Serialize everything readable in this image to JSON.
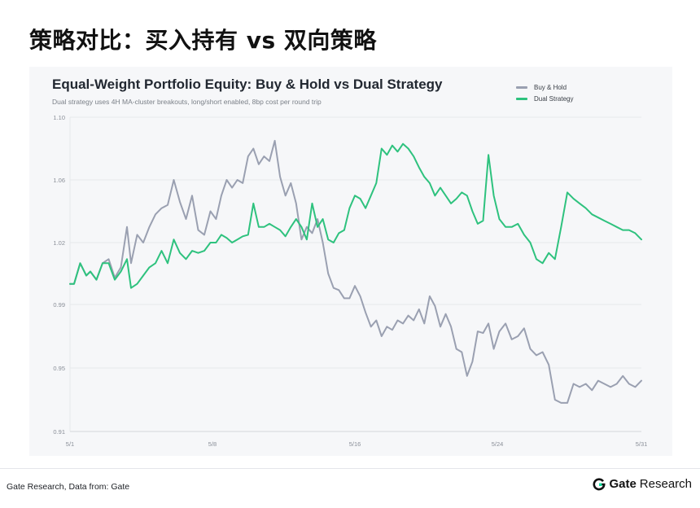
{
  "page": {
    "title": "策略对比：买入持有 vs 双向策略",
    "source": "Gate Research, Data from: Gate",
    "logo": {
      "icon": "gate-logo-icon",
      "brand": "Gate",
      "suffix": "Research"
    }
  },
  "colors": {
    "buy_hold": "#9aa0b1",
    "dual": "#2ec27e",
    "grid": "#e6e8ec",
    "axis_text": "#8a8f98"
  },
  "chart_data": {
    "type": "line",
    "title": "Equal-Weight Portfolio Equity: Buy & Hold vs Dual Strategy",
    "subtitle": "Dual strategy uses 4H MA-cluster breakouts, long/short enabled, 8bp cost per round trip",
    "ylim": [
      0.91,
      1.1
    ],
    "yticks": [
      0.91,
      0.95,
      0.99,
      1.02,
      1.06,
      1.1
    ],
    "ytick_labels": [
      "0.91",
      "0.95",
      "0.99",
      "1.02",
      "1.06",
      "1.10"
    ],
    "xlim": [
      1,
      31
    ],
    "xticks": [
      1,
      8,
      16,
      24,
      31
    ],
    "xtick_labels": [
      "5/1",
      "5/8",
      "5/16",
      "5/24",
      "5/31"
    ],
    "grid": "horizontal",
    "legend_position": "top-right",
    "series": [
      {
        "name": "Buy & Hold",
        "x": [
          1.0,
          1.2,
          1.5,
          1.8,
          2.0,
          2.3,
          2.6,
          2.9,
          3.2,
          3.5,
          3.8,
          4.0,
          4.3,
          4.6,
          4.9,
          5.2,
          5.5,
          5.8,
          6.1,
          6.4,
          6.7,
          7.0,
          7.3,
          7.6,
          7.9,
          8.2,
          8.5,
          8.8,
          9.1,
          9.4,
          9.7,
          10.0,
          10.3,
          10.6,
          10.9,
          11.2,
          11.5,
          11.8,
          12.1,
          12.4,
          12.7,
          13.0,
          13.3,
          13.6,
          13.9,
          14.2,
          14.5,
          14.8,
          15.1,
          15.4,
          15.7,
          16.0,
          16.3,
          16.6,
          16.9,
          17.2,
          17.5,
          17.8,
          18.1,
          18.4,
          18.7,
          19.0,
          19.3,
          19.6,
          19.9,
          20.2,
          20.5,
          20.8,
          21.1,
          21.4,
          21.7,
          22.0,
          22.3,
          22.6,
          22.9,
          23.2,
          23.5,
          23.8,
          24.1,
          24.4,
          24.7,
          25.0,
          25.3,
          25.6,
          25.9,
          26.2,
          26.5,
          26.8,
          27.1,
          27.4,
          27.7,
          28.0,
          28.3,
          28.6,
          28.9,
          29.2,
          29.5,
          29.8,
          30.1,
          30.4,
          30.7,
          31.0
        ],
        "values": [
          1.0,
          1.0,
          1.01,
          1.004,
          1.006,
          1.002,
          1.01,
          1.012,
          1.003,
          1.008,
          1.03,
          1.01,
          1.025,
          1.02,
          1.03,
          1.038,
          1.042,
          1.044,
          1.06,
          1.046,
          1.035,
          1.05,
          1.028,
          1.025,
          1.04,
          1.035,
          1.05,
          1.06,
          1.055,
          1.06,
          1.058,
          1.075,
          1.08,
          1.07,
          1.075,
          1.072,
          1.085,
          1.062,
          1.05,
          1.058,
          1.045,
          1.022,
          1.03,
          1.026,
          1.035,
          1.02,
          1.005,
          0.998,
          0.997,
          0.993,
          0.993,
          0.999,
          0.994,
          0.985,
          0.976,
          0.98,
          0.97,
          0.976,
          0.974,
          0.98,
          0.978,
          0.983,
          0.98,
          0.987,
          0.978,
          0.994,
          0.989,
          0.976,
          0.984,
          0.976,
          0.962,
          0.96,
          0.945,
          0.954,
          0.973,
          0.972,
          0.978,
          0.962,
          0.973,
          0.978,
          0.968,
          0.97,
          0.975,
          0.962,
          0.958,
          0.96,
          0.952,
          0.93,
          0.928,
          0.928,
          0.94,
          0.938,
          0.94,
          0.936,
          0.942,
          0.94,
          0.938,
          0.94,
          0.945,
          0.94,
          0.938,
          0.942
        ]
      },
      {
        "name": "Dual Strategy",
        "x": [
          1.0,
          1.2,
          1.5,
          1.8,
          2.0,
          2.3,
          2.6,
          2.9,
          3.2,
          3.5,
          3.8,
          4.0,
          4.3,
          4.6,
          4.9,
          5.2,
          5.5,
          5.8,
          6.1,
          6.4,
          6.7,
          7.0,
          7.3,
          7.6,
          7.9,
          8.2,
          8.5,
          8.8,
          9.1,
          9.4,
          9.7,
          10.0,
          10.3,
          10.6,
          10.9,
          11.2,
          11.5,
          11.8,
          12.1,
          12.4,
          12.7,
          13.0,
          13.3,
          13.6,
          13.9,
          14.2,
          14.5,
          14.8,
          15.1,
          15.4,
          15.7,
          16.0,
          16.3,
          16.6,
          16.9,
          17.2,
          17.5,
          17.8,
          18.1,
          18.4,
          18.7,
          19.0,
          19.3,
          19.6,
          19.9,
          20.2,
          20.5,
          20.8,
          21.1,
          21.4,
          21.7,
          22.0,
          22.3,
          22.6,
          22.9,
          23.2,
          23.5,
          23.8,
          24.1,
          24.4,
          24.7,
          25.0,
          25.3,
          25.6,
          25.9,
          26.2,
          26.5,
          26.8,
          27.1,
          27.4,
          27.7,
          28.0,
          28.3,
          28.6,
          28.9,
          29.2,
          29.5,
          29.8,
          30.1,
          30.4,
          30.7,
          31.0
        ],
        "values": [
          1.0,
          1.0,
          1.01,
          1.004,
          1.006,
          1.002,
          1.01,
          1.01,
          1.002,
          1.006,
          1.012,
          0.998,
          1.0,
          1.004,
          1.008,
          1.01,
          1.016,
          1.01,
          1.022,
          1.015,
          1.012,
          1.016,
          1.015,
          1.016,
          1.02,
          1.02,
          1.025,
          1.023,
          1.02,
          1.022,
          1.024,
          1.025,
          1.045,
          1.03,
          1.03,
          1.032,
          1.03,
          1.028,
          1.024,
          1.03,
          1.035,
          1.03,
          1.022,
          1.045,
          1.03,
          1.035,
          1.022,
          1.02,
          1.026,
          1.028,
          1.042,
          1.05,
          1.048,
          1.042,
          1.05,
          1.058,
          1.08,
          1.076,
          1.082,
          1.078,
          1.083,
          1.08,
          1.075,
          1.068,
          1.062,
          1.058,
          1.05,
          1.055,
          1.05,
          1.045,
          1.048,
          1.052,
          1.05,
          1.04,
          1.032,
          1.034,
          1.076,
          1.05,
          1.035,
          1.03,
          1.03,
          1.032,
          1.025,
          1.02,
          1.012,
          1.01,
          1.015,
          1.012,
          1.03,
          1.052,
          1.048,
          1.045,
          1.042,
          1.038,
          1.036,
          1.034,
          1.032,
          1.03,
          1.028,
          1.028,
          1.026,
          1.022
        ]
      }
    ]
  }
}
